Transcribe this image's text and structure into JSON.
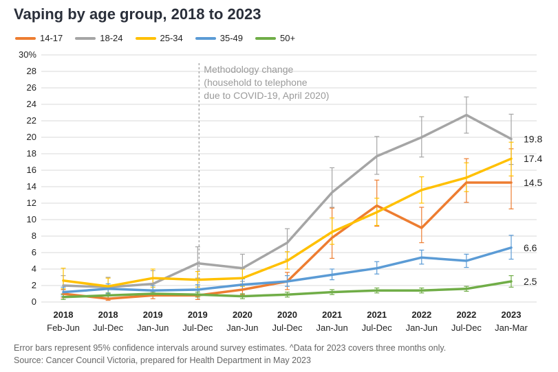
{
  "chart_data": {
    "type": "line",
    "title": "Vaping by age group, 2018 to 2023",
    "categories": [
      {
        "year": "2018",
        "period": "Feb-Jun"
      },
      {
        "year": "2018",
        "period": "Jul-Dec"
      },
      {
        "year": "2019",
        "period": "Jan-Jun"
      },
      {
        "year": "2019",
        "period": "Jul-Dec"
      },
      {
        "year": "2020",
        "period": "Jan-Jun"
      },
      {
        "year": "2020",
        "period": "Jul-Dec"
      },
      {
        "year": "2021",
        "period": "Jan-Jun"
      },
      {
        "year": "2021",
        "period": "Jul-Dec"
      },
      {
        "year": "2022",
        "period": "Jan-Jun"
      },
      {
        "year": "2022",
        "period": "Jul-Dec"
      },
      {
        "year": "2023",
        "period": "Jan-Mar"
      }
    ],
    "ylim": [
      0,
      30
    ],
    "yticks": [
      "0",
      "2",
      "4",
      "6",
      "8",
      "10",
      "12",
      "14",
      "16",
      "18",
      "20",
      "22",
      "24",
      "26",
      "28",
      "30%"
    ],
    "series": [
      {
        "name": "14-17",
        "color": "#ED7D31",
        "values": [
          1.0,
          0.4,
          0.8,
          0.8,
          1.5,
          2.5,
          7.8,
          11.7,
          9.0,
          14.5,
          14.5
        ],
        "err": [
          [
            0.5,
            1.5
          ],
          [
            0.2,
            0.8
          ],
          [
            0.4,
            1.4
          ],
          [
            0.3,
            1.5
          ],
          [
            0.9,
            2.2
          ],
          [
            1.5,
            3.6
          ],
          [
            5.3,
            11.4
          ],
          [
            9.2,
            14.8
          ],
          [
            7.2,
            11.5
          ],
          [
            12.1,
            17.4
          ],
          [
            11.3,
            18.6
          ]
        ],
        "end_label": "14.5"
      },
      {
        "name": "18-24",
        "color": "#A5A5A5",
        "values": [
          2.0,
          1.8,
          2.2,
          4.7,
          4.1,
          7.2,
          13.3,
          17.7,
          20.0,
          22.7,
          19.8
        ],
        "err": [
          [
            1.0,
            3.2
          ],
          [
            0.8,
            3.0
          ],
          [
            1.2,
            3.8
          ],
          [
            2.9,
            6.7
          ],
          [
            2.5,
            5.8
          ],
          [
            5.2,
            8.9
          ],
          [
            11.5,
            16.3
          ],
          [
            15.5,
            20.1
          ],
          [
            17.6,
            22.5
          ],
          [
            20.5,
            24.9
          ],
          [
            16.7,
            22.8
          ]
        ],
        "end_label": "19.8"
      },
      {
        "name": "25-34",
        "color": "#FFC000",
        "values": [
          2.6,
          1.9,
          2.9,
          2.7,
          2.9,
          5.0,
          8.5,
          10.9,
          13.6,
          15.1,
          17.4
        ],
        "err": [
          [
            1.6,
            4.1
          ],
          [
            1.0,
            2.9
          ],
          [
            1.8,
            4.0
          ],
          [
            1.8,
            3.7
          ],
          [
            1.9,
            4.0
          ],
          [
            4.0,
            6.1
          ],
          [
            7.0,
            10.2
          ],
          [
            9.3,
            12.6
          ],
          [
            12.0,
            15.2
          ],
          [
            13.4,
            16.9
          ],
          [
            15.3,
            19.4
          ]
        ],
        "end_label": "17.4"
      },
      {
        "name": "35-49",
        "color": "#5B9BD5",
        "values": [
          1.2,
          1.6,
          1.4,
          1.5,
          2.1,
          2.5,
          3.3,
          4.1,
          5.4,
          5.0,
          6.6
        ],
        "err": [
          [
            0.7,
            1.8
          ],
          [
            1.0,
            2.2
          ],
          [
            0.9,
            2.0
          ],
          [
            1.0,
            2.1
          ],
          [
            1.5,
            2.8
          ],
          [
            1.9,
            3.2
          ],
          [
            2.7,
            4.0
          ],
          [
            3.4,
            4.9
          ],
          [
            4.6,
            6.3
          ],
          [
            4.2,
            5.8
          ],
          [
            5.2,
            8.1
          ]
        ],
        "end_label": "6.6"
      },
      {
        "name": "50+",
        "color": "#70AD47",
        "values": [
          0.6,
          0.8,
          1.0,
          0.9,
          0.7,
          0.9,
          1.2,
          1.4,
          1.4,
          1.6,
          2.5
        ],
        "err": [
          [
            0.3,
            0.9
          ],
          [
            0.5,
            1.1
          ],
          [
            0.7,
            1.4
          ],
          [
            0.6,
            1.2
          ],
          [
            0.4,
            1.0
          ],
          [
            0.6,
            1.2
          ],
          [
            0.9,
            1.5
          ],
          [
            1.1,
            1.7
          ],
          [
            1.1,
            1.7
          ],
          [
            1.3,
            1.9
          ],
          [
            1.8,
            3.2
          ]
        ],
        "end_label": "2.5"
      }
    ],
    "annotation": {
      "lines": [
        "Methodology change",
        "(household to telephone",
        "due to COVID-19, April 2020)"
      ],
      "at_index": 3
    }
  },
  "footer": {
    "note": "Error bars represent 95% confidence intervals around survey estimates. ^Data for 2023 covers three months only.",
    "source": "Source: Cancer Council Victoria, prepared for Health Department in May 2023"
  }
}
